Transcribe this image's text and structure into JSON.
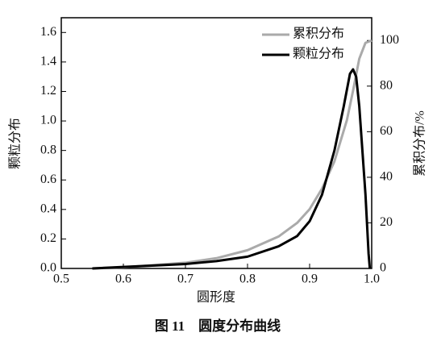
{
  "chart_data": {
    "type": "line",
    "caption": "图 11　圆度分布曲线",
    "x_label": "圆形度",
    "y_label": "颗粒分布",
    "y2_label": "累积分布/%",
    "xlim": [
      0.5,
      1.0
    ],
    "xticks": [
      0.5,
      0.6,
      0.7,
      0.8,
      0.9,
      {
        "value": 1.0,
        "label": "1.0"
      }
    ],
    "ylim": [
      0,
      1.7
    ],
    "yticks": [
      {
        "value": 0,
        "label": "0.0"
      },
      0.2,
      0.4,
      0.6,
      0.8,
      {
        "value": 1.0,
        "label": "1.0"
      },
      1.2,
      1.4,
      1.6
    ],
    "y2lim": [
      0,
      110
    ],
    "y2ticks": [
      0,
      20,
      40,
      60,
      80,
      100
    ],
    "legend": "top-right",
    "series": [
      {
        "name": "累积分布",
        "color": "#aaaaaa",
        "axis": "y2",
        "x": [
          0.55,
          0.6,
          0.65,
          0.7,
          0.75,
          0.8,
          0.85,
          0.88,
          0.9,
          0.92,
          0.94,
          0.96,
          0.97,
          0.98,
          0.99,
          1.0
        ],
        "values": [
          0,
          0.5,
          1.5,
          2.5,
          4.5,
          8,
          14,
          20,
          26,
          35,
          47,
          65,
          78,
          92,
          99,
          100
        ]
      },
      {
        "name": "颗粒分布",
        "color": "#000000",
        "x": [
          0.55,
          0.6,
          0.65,
          0.7,
          0.75,
          0.8,
          0.85,
          0.88,
          0.9,
          0.92,
          0.94,
          0.955,
          0.965,
          0.97,
          0.975,
          0.98,
          0.99,
          0.995,
          0.997
        ],
        "values": [
          0,
          0.01,
          0.02,
          0.03,
          0.05,
          0.08,
          0.15,
          0.22,
          0.32,
          0.5,
          0.8,
          1.1,
          1.32,
          1.35,
          1.3,
          1.1,
          0.5,
          0.1,
          0
        ]
      }
    ]
  }
}
